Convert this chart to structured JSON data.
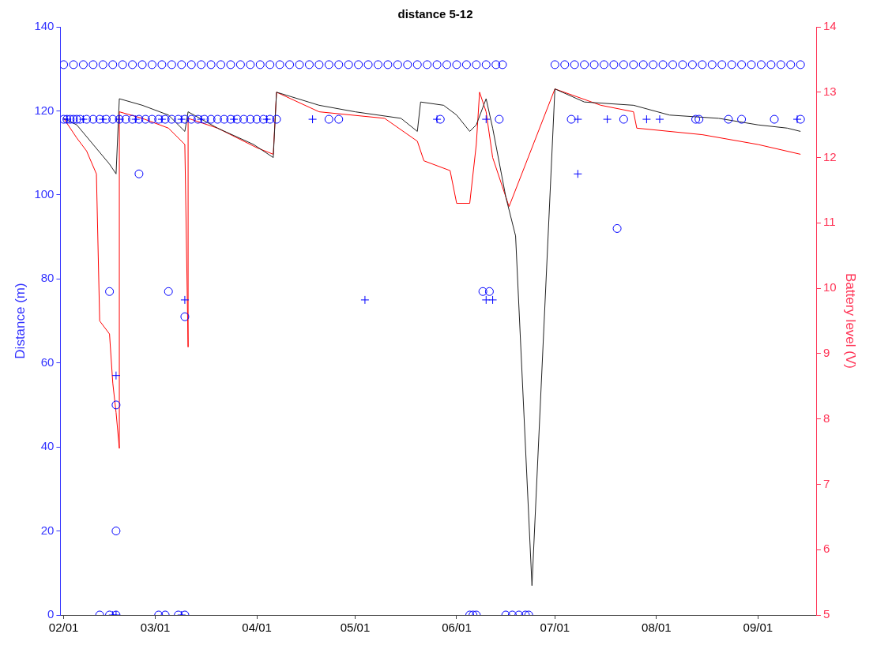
{
  "chart_data": {
    "type": "scatter",
    "title": "distance 5-12",
    "ylabel": "Distance (m)",
    "y2label": "Battery level (V)",
    "xlim": [
      "--01-31",
      "--09-19"
    ],
    "xticks": [
      {
        "value": "--02-01",
        "label": "02/01"
      },
      {
        "value": "--03-01",
        "label": "03/01"
      },
      {
        "value": "--04-01",
        "label": "04/01"
      },
      {
        "value": "--05-01",
        "label": "05/01"
      },
      {
        "value": "--06-01",
        "label": "06/01"
      },
      {
        "value": "--07-01",
        "label": "07/01"
      },
      {
        "value": "--08-01",
        "label": "08/01"
      },
      {
        "value": "--09-01",
        "label": "09/01"
      }
    ],
    "ylim": [
      0,
      140
    ],
    "yticks": [
      0,
      20,
      40,
      60,
      80,
      100,
      120,
      140
    ],
    "y2lim": [
      5,
      14
    ],
    "y2ticks": [
      5,
      6,
      7,
      8,
      9,
      10,
      11,
      12,
      13,
      14
    ],
    "series": [
      {
        "marker": "circle",
        "color": "#0000ff",
        "x": [
          "--02-01",
          "--02-04",
          "--02-07",
          "--02-10",
          "--02-13",
          "--02-16",
          "--02-19",
          "--02-22",
          "--02-25",
          "--02-28",
          "--03-03",
          "--03-06",
          "--03-09",
          "--03-12",
          "--03-15",
          "--03-18",
          "--03-21",
          "--03-24",
          "--03-27",
          "--03-30",
          "--04-02",
          "--04-05",
          "--04-08",
          "--04-11",
          "--04-14",
          "--04-17",
          "--04-20",
          "--04-23",
          "--04-26",
          "--04-29",
          "--05-02",
          "--05-05",
          "--05-08",
          "--05-11",
          "--05-14",
          "--05-17",
          "--05-20",
          "--05-23",
          "--05-26",
          "--05-29",
          "--06-01",
          "--06-04",
          "--06-07",
          "--06-10",
          "--06-13",
          "--06-15",
          "--07-01",
          "--07-04",
          "--07-07",
          "--07-10",
          "--07-13",
          "--07-16",
          "--07-19",
          "--07-22",
          "--07-25",
          "--07-28",
          "--07-31",
          "--08-03",
          "--08-06",
          "--08-09",
          "--08-12",
          "--08-15",
          "--08-18",
          "--08-21",
          "--08-24",
          "--08-27",
          "--08-30",
          "--09-02",
          "--09-05",
          "--09-08",
          "--09-11",
          "--09-14"
        ],
        "values": [
          131,
          131,
          131,
          131,
          131,
          131,
          131,
          131,
          131,
          131,
          131,
          131,
          131,
          131,
          131,
          131,
          131,
          131,
          131,
          131,
          131,
          131,
          131,
          131,
          131,
          131,
          131,
          131,
          131,
          131,
          131,
          131,
          131,
          131,
          131,
          131,
          131,
          131,
          131,
          131,
          131,
          131,
          131,
          131,
          131,
          131,
          131,
          131,
          131,
          131,
          131,
          131,
          131,
          131,
          131,
          131,
          131,
          131,
          131,
          131,
          131,
          131,
          131,
          131,
          131,
          131,
          131,
          131,
          131,
          131,
          131,
          131
        ]
      },
      {
        "marker": "circle",
        "color": "#0000ff",
        "x": [
          "--02-01",
          "--02-02",
          "--02-03",
          "--02-04",
          "--02-05",
          "--02-06",
          "--02-08",
          "--02-10",
          "--02-12",
          "--02-14",
          "--02-16",
          "--02-18",
          "--02-20",
          "--02-22",
          "--02-24",
          "--02-26",
          "--02-28",
          "--03-02",
          "--03-04",
          "--03-06",
          "--03-08",
          "--03-10",
          "--03-12",
          "--03-14",
          "--03-16",
          "--03-18",
          "--03-20",
          "--03-22",
          "--03-24",
          "--03-26",
          "--03-28",
          "--03-30",
          "--04-01",
          "--04-03",
          "--04-05",
          "--04-07",
          "--04-23",
          "--04-26",
          "--05-27",
          "--06-14",
          "--07-06",
          "--07-22",
          "--08-13",
          "--08-14",
          "--08-23",
          "--08-27",
          "--09-06",
          "--09-14",
          "--02-15",
          "--02-17",
          "--02-17",
          "--02-24",
          "--03-05",
          "--03-10",
          "--07-20",
          "--06-09",
          "--06-11",
          "--02-12",
          "--02-15",
          "--02-17",
          "--03-02",
          "--03-04",
          "--03-08",
          "--03-10",
          "--06-05",
          "--06-06",
          "--06-07",
          "--06-16",
          "--06-18",
          "--06-20",
          "--06-22",
          "--06-23"
        ],
        "values": [
          118,
          118,
          118,
          118,
          118,
          118,
          118,
          118,
          118,
          118,
          118,
          118,
          118,
          118,
          118,
          118,
          118,
          118,
          118,
          118,
          118,
          118,
          118,
          118,
          118,
          118,
          118,
          118,
          118,
          118,
          118,
          118,
          118,
          118,
          118,
          118,
          118,
          118,
          118,
          118,
          118,
          118,
          118,
          118,
          118,
          118,
          118,
          118,
          77,
          50,
          20,
          105,
          77,
          71,
          92,
          77,
          77,
          0,
          0,
          0,
          0,
          0,
          0,
          0,
          0,
          0,
          0,
          0,
          0,
          0,
          0,
          0
        ]
      },
      {
        "marker": "cross",
        "color": "#0000ff",
        "x": [
          "--02-02",
          "--02-07",
          "--02-13",
          "--02-18",
          "--02-23",
          "--03-03",
          "--03-09",
          "--03-15",
          "--03-25",
          "--04-04",
          "--04-18",
          "--05-26",
          "--06-10",
          "--07-08",
          "--07-17",
          "--07-29",
          "--08-02",
          "--09-13",
          "--02-17",
          "--03-10",
          "--05-04",
          "--06-10",
          "--06-12",
          "--07-08",
          "--02-16",
          "--02-17",
          "--03-09"
        ],
        "values": [
          118,
          118,
          118,
          118,
          118,
          118,
          118,
          118,
          118,
          118,
          118,
          118,
          118,
          118,
          118,
          118,
          118,
          118,
          57,
          75,
          75,
          75,
          75,
          105,
          0,
          0,
          0
        ]
      },
      {
        "type": "line",
        "axis": "y2",
        "marker": "none",
        "line_style": "solid",
        "color": "#222222",
        "x": [
          "--02-01",
          "--02-05",
          "--02-10",
          "--02-15",
          "--02-17",
          "--02-18",
          "--02-25",
          "--03-05",
          "--03-10",
          "--03-11",
          "--03-20",
          "--03-31",
          "--04-06",
          "--04-07",
          "--04-20",
          "--05-01",
          "--05-15",
          "--05-20",
          "--05-21",
          "--05-28",
          "--06-01",
          "--06-05",
          "--06-07",
          "--06-10",
          "--06-12",
          "--06-16",
          "--06-19",
          "--06-24",
          "--07-01",
          "--07-10",
          "--07-25",
          "--08-05",
          "--08-20",
          "--09-01",
          "--09-10",
          "--09-14"
        ],
        "values": [
          12.6,
          12.5,
          12.2,
          11.9,
          11.75,
          12.9,
          12.8,
          12.65,
          12.4,
          12.7,
          12.45,
          12.2,
          12.0,
          13.0,
          12.8,
          12.7,
          12.6,
          12.4,
          12.85,
          12.8,
          12.65,
          12.4,
          12.5,
          12.9,
          12.45,
          11.4,
          10.8,
          5.45,
          13.05,
          12.85,
          12.8,
          12.65,
          12.6,
          12.5,
          12.45,
          12.4
        ]
      },
      {
        "type": "line",
        "axis": "y2",
        "marker": "none",
        "line_style": "solid",
        "color": "#ff0000",
        "x": [
          "--02-01",
          "--02-05",
          "--02-08",
          "--02-11",
          "--02-12",
          "--02-15",
          "--02-16",
          "--02-17",
          "--02-18",
          "--02-18",
          "--02-25",
          "--03-05",
          "--03-10",
          "--03-11",
          "--03-11",
          "--03-20",
          "--04-01",
          "--04-06",
          "--04-07",
          "--04-20",
          "--05-10",
          "--05-20",
          "--05-22",
          "--05-30",
          "--06-01",
          "--06-05",
          "--06-07",
          "--06-08",
          "--06-10",
          "--06-12",
          "--06-15",
          "--06-17",
          "--07-01",
          "--07-15",
          "--07-25",
          "--07-26",
          "--08-15",
          "--09-01",
          "--09-14"
        ],
        "values": [
          12.6,
          12.3,
          12.1,
          11.75,
          9.5,
          9.3,
          8.55,
          8.1,
          7.55,
          12.7,
          12.6,
          12.45,
          12.2,
          9.1,
          12.6,
          12.45,
          12.15,
          12.05,
          13.0,
          12.7,
          12.6,
          12.25,
          11.95,
          11.8,
          11.3,
          11.3,
          12.2,
          13.0,
          12.7,
          12.0,
          11.55,
          11.25,
          13.05,
          12.8,
          12.7,
          12.45,
          12.35,
          12.2,
          12.05
        ]
      }
    ]
  }
}
